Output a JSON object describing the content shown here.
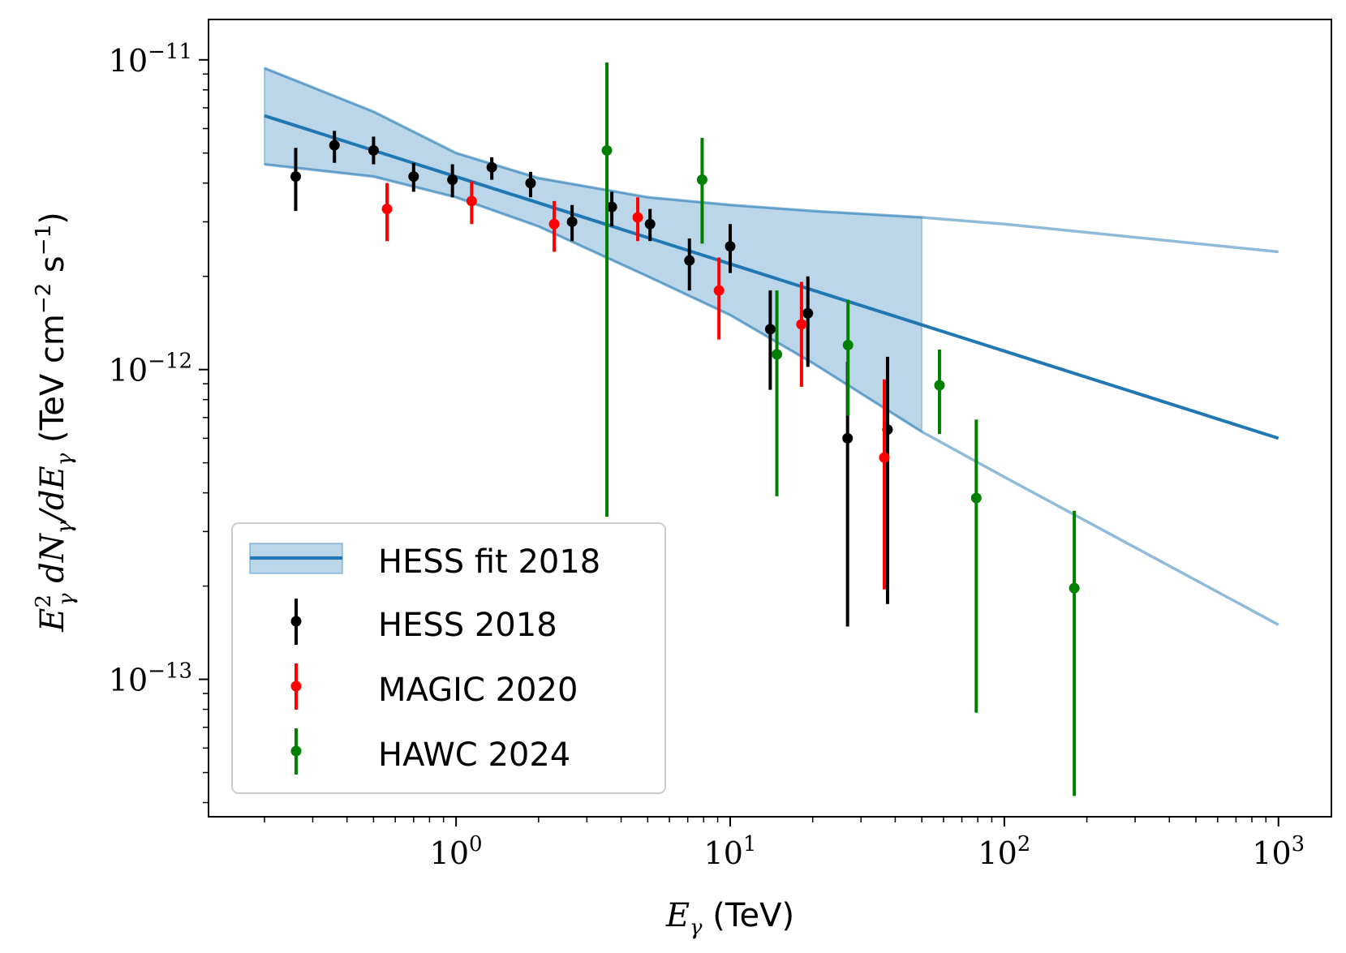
{
  "chart_data": {
    "type": "scatter",
    "xscale": "log",
    "yscale": "log",
    "xlim": [
      0.125,
      1560
    ],
    "ylim": [
      3.6e-14,
      1.35e-11
    ],
    "xlabel": "E_γ (TeV)",
    "xlabel_parts": {
      "symbol": "E",
      "sub": "γ",
      "unit": " (TeV)"
    },
    "ylabel": "E_γ^2 dN_γ/dE_γ (TeV cm^-2 s^-1)",
    "ylabel_parts": {
      "e": "E",
      "sup": "2",
      "sub": "γ",
      "mid": " dN",
      "slash": "/dE",
      "unit": " (TeV cm",
      "unit_exp1": "−2",
      "unit_s": " s",
      "unit_exp2": "−1",
      "close": ")"
    },
    "x_ticks": [
      {
        "value": 1,
        "base": "10",
        "exp": "0"
      },
      {
        "value": 10,
        "base": "10",
        "exp": "1"
      },
      {
        "value": 100,
        "base": "10",
        "exp": "2"
      },
      {
        "value": 1000,
        "base": "10",
        "exp": "3"
      }
    ],
    "y_ticks": [
      {
        "value": 1e-11,
        "base": "10",
        "exp": "−11"
      },
      {
        "value": 1e-12,
        "base": "10",
        "exp": "−12"
      },
      {
        "value": 1e-13,
        "base": "10",
        "exp": "−13"
      }
    ],
    "fit": {
      "name": "HESS fit 2018",
      "color": "#1f77b4",
      "line": {
        "x": [
          0.2,
          1000
        ],
        "y": [
          6.6e-12,
          6e-13
        ]
      },
      "band_lower": {
        "x": [
          0.2,
          0.5,
          1,
          2,
          5,
          10,
          20,
          50,
          100,
          1000
        ],
        "y": [
          4.6e-12,
          4.2e-12,
          3.6e-12,
          2.9e-12,
          2e-12,
          1.5e-12,
          1.05e-12,
          6.3e-13,
          4.5e-13,
          1.5e-13
        ]
      },
      "band_upper": {
        "x": [
          0.2,
          0.5,
          1,
          2,
          5,
          10,
          20,
          50,
          100,
          1000
        ],
        "y": [
          9.4e-12,
          6.8e-12,
          5e-12,
          4.15e-12,
          3.6e-12,
          3.4e-12,
          3.25e-12,
          3.1e-12,
          2.95e-12,
          2.4e-12
        ]
      },
      "band_end_x": 50
    },
    "series": [
      {
        "name": "HESS 2018",
        "color": "#000000",
        "points": [
          {
            "x": 0.26,
            "y": 4.2e-12,
            "lo": 3.25e-12,
            "hi": 5.2e-12
          },
          {
            "x": 0.36,
            "y": 5.3e-12,
            "lo": 4.65e-12,
            "hi": 5.9e-12
          },
          {
            "x": 0.5,
            "y": 5.1e-12,
            "lo": 4.6e-12,
            "hi": 5.65e-12
          },
          {
            "x": 0.7,
            "y": 4.2e-12,
            "lo": 3.75e-12,
            "hi": 4.65e-12
          },
          {
            "x": 0.97,
            "y": 4.1e-12,
            "lo": 3.6e-12,
            "hi": 4.6e-12
          },
          {
            "x": 1.35,
            "y": 4.5e-12,
            "lo": 4.1e-12,
            "hi": 4.85e-12
          },
          {
            "x": 1.87,
            "y": 4e-12,
            "lo": 3.6e-12,
            "hi": 4.35e-12
          },
          {
            "x": 2.65,
            "y": 3e-12,
            "lo": 2.6e-12,
            "hi": 3.4e-12
          },
          {
            "x": 3.7,
            "y": 3.35e-12,
            "lo": 2.9e-12,
            "hi": 3.75e-12
          },
          {
            "x": 5.1,
            "y": 2.95e-12,
            "lo": 2.6e-12,
            "hi": 3.3e-12
          },
          {
            "x": 7.1,
            "y": 2.25e-12,
            "lo": 1.8e-12,
            "hi": 2.65e-12
          },
          {
            "x": 10.0,
            "y": 2.5e-12,
            "lo": 2.05e-12,
            "hi": 2.95e-12
          },
          {
            "x": 14.0,
            "y": 1.35e-12,
            "lo": 8.6e-13,
            "hi": 1.8e-12
          },
          {
            "x": 19.2,
            "y": 1.52e-12,
            "lo": 1.02e-12,
            "hi": 2e-12
          },
          {
            "x": 26.8,
            "y": 6e-13,
            "lo": 1.48e-13,
            "hi": 1.06e-12
          },
          {
            "x": 37.5,
            "y": 6.4e-13,
            "lo": 1.75e-13,
            "hi": 1.1e-12
          }
        ]
      },
      {
        "name": "MAGIC 2020",
        "color": "#ff0000",
        "points": [
          {
            "x": 0.56,
            "y": 3.3e-12,
            "lo": 2.6e-12,
            "hi": 4e-12
          },
          {
            "x": 1.14,
            "y": 3.5e-12,
            "lo": 2.95e-12,
            "hi": 4.05e-12
          },
          {
            "x": 2.28,
            "y": 2.95e-12,
            "lo": 2.4e-12,
            "hi": 3.5e-12
          },
          {
            "x": 4.6,
            "y": 3.1e-12,
            "lo": 2.6e-12,
            "hi": 3.6e-12
          },
          {
            "x": 9.1,
            "y": 1.8e-12,
            "lo": 1.25e-12,
            "hi": 2.3e-12
          },
          {
            "x": 18.2,
            "y": 1.4e-12,
            "lo": 8.8e-13,
            "hi": 1.92e-12
          },
          {
            "x": 36.5,
            "y": 5.2e-13,
            "lo": 1.95e-13,
            "hi": 9.3e-13
          }
        ]
      },
      {
        "name": "HAWC 2024",
        "color": "#008000",
        "points": [
          {
            "x": 3.55,
            "y": 5.1e-12,
            "lo": 3.35e-13,
            "hi": 9.8e-12
          },
          {
            "x": 7.9,
            "y": 4.1e-12,
            "lo": 2.55e-12,
            "hi": 5.6e-12
          },
          {
            "x": 14.8,
            "y": 1.12e-12,
            "lo": 3.9e-13,
            "hi": 1.8e-12
          },
          {
            "x": 26.9,
            "y": 1.2e-12,
            "lo": 7.1e-13,
            "hi": 1.68e-12
          },
          {
            "x": 58.0,
            "y": 8.9e-13,
            "lo": 6.2e-13,
            "hi": 1.16e-12
          },
          {
            "x": 79.0,
            "y": 3.85e-13,
            "lo": 7.8e-14,
            "hi": 6.9e-13
          },
          {
            "x": 180.0,
            "y": 1.97e-13,
            "lo": 4.2e-14,
            "hi": 3.5e-13
          }
        ]
      }
    ],
    "legend": {
      "position": "lower-left",
      "entries": [
        "HESS fit 2018",
        "HESS 2018",
        "MAGIC 2020",
        "HAWC 2024"
      ]
    }
  }
}
